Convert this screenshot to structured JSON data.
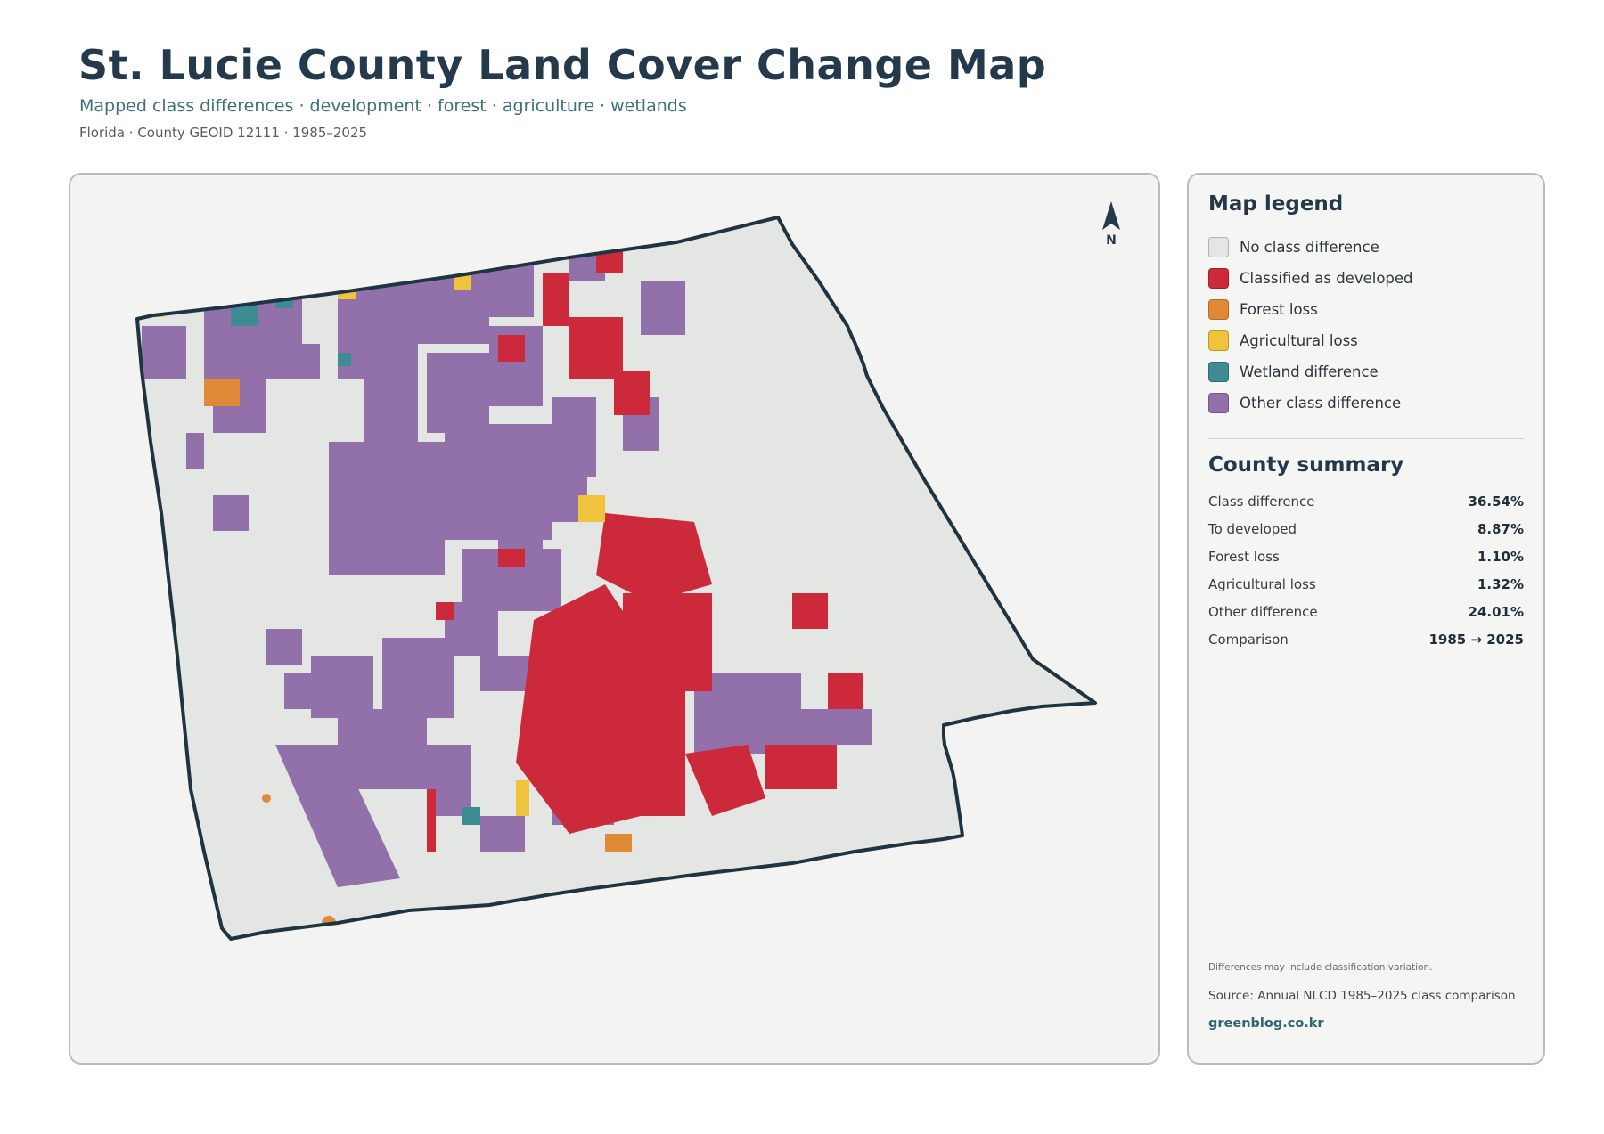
{
  "header": {
    "title": "St. Lucie County Land Cover Change Map",
    "subtitle": "Mapped class differences · development · forest · agriculture · wetlands",
    "meta": "Florida · County GEOID 12111 · 1985–2025"
  },
  "map": {
    "north_label": "N",
    "colors": {
      "boundary": "#1f3440",
      "no_change": "#e4e6e3",
      "developed": "#cc2a3b",
      "forest_loss": "#e08a37",
      "agricultural_loss": "#f0c33c",
      "wetland": "#3f8b93",
      "other": "#9271aa"
    }
  },
  "legend": {
    "title": "Map legend",
    "items": [
      {
        "label": "No class difference",
        "color": "#e4e6e3"
      },
      {
        "label": "Classified as developed",
        "color": "#cc2a3b"
      },
      {
        "label": "Forest loss",
        "color": "#e08a37"
      },
      {
        "label": "Agricultural loss",
        "color": "#f0c33c"
      },
      {
        "label": "Wetland difference",
        "color": "#3f8b93"
      },
      {
        "label": "Other class difference",
        "color": "#9271aa"
      }
    ]
  },
  "summary": {
    "title": "County summary",
    "rows": [
      {
        "label": "Class difference",
        "value": "36.54%"
      },
      {
        "label": "To developed",
        "value": "8.87%"
      },
      {
        "label": "Forest loss",
        "value": "1.10%"
      },
      {
        "label": "Agricultural loss",
        "value": "1.32%"
      },
      {
        "label": "Other difference",
        "value": "24.01%"
      },
      {
        "label": "Comparison",
        "value": "1985 → 2025"
      }
    ]
  },
  "footer": {
    "note": "Differences may include classification variation.",
    "source": "Source: Annual NLCD 1985–2025 class comparison",
    "site": "greenblog.co.kr"
  }
}
